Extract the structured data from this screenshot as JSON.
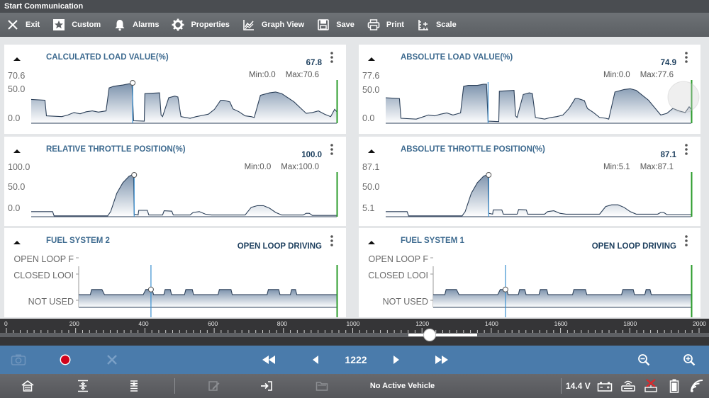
{
  "window": {
    "title": "Start Communication"
  },
  "toolbar": {
    "buttons": [
      {
        "label": "Exit",
        "icon": "close-icon"
      },
      {
        "label": "Custom",
        "icon": "star-icon"
      },
      {
        "label": "Alarms",
        "icon": "bell-icon"
      },
      {
        "label": "Properties",
        "icon": "gear-icon"
      },
      {
        "label": "Graph View",
        "icon": "graph-icon"
      },
      {
        "label": "Save",
        "icon": "save-icon"
      },
      {
        "label": "Print",
        "icon": "printer-icon"
      },
      {
        "label": "Scale",
        "icon": "scale-icon"
      }
    ]
  },
  "panels": [
    {
      "title": "CALCULATED LOAD VALUE(%)",
      "value": "67.8",
      "min_label": "Min:0.0",
      "max_label": "Max:70.6",
      "y_labels": [
        "70.6",
        "50.0",
        "0.0"
      ],
      "chart_data": {
        "type": "area",
        "y_range": [
          0,
          70.6
        ]
      }
    },
    {
      "title": "ABSOLUTE LOAD VALUE(%)",
      "value": "74.9",
      "min_label": "Min:0.0",
      "max_label": "Max:77.6",
      "y_labels": [
        "77.6",
        "50.0",
        "0.0"
      ],
      "chart_data": {
        "type": "area",
        "y_range": [
          0,
          77.6
        ]
      }
    },
    {
      "title": "RELATIVE THROTTLE POSITION(%)",
      "value": "100.0",
      "min_label": "Min:0.0",
      "max_label": "Max:100.0",
      "y_labels": [
        "100.0",
        "50.0",
        "0.0"
      ],
      "chart_data": {
        "type": "area",
        "y_range": [
          0,
          100
        ]
      }
    },
    {
      "title": "ABSOLUTE THROTTLE POSITION(%)",
      "value": "87.1",
      "min_label": "Min:5.1",
      "max_label": "Max:87.1",
      "y_labels": [
        "87.1",
        "50.0",
        "5.1"
      ],
      "chart_data": {
        "type": "area",
        "y_range": [
          5.1,
          87.1
        ]
      }
    },
    {
      "title": "FUEL SYSTEM 2",
      "value": "OPEN LOOP DRIVING",
      "y_labels": [
        "OPEN LOOP F",
        "CLOSED LOOI",
        "NOT USED"
      ],
      "chart_data": {
        "type": "area",
        "states": [
          "OPEN LOOP F",
          "CLOSED LOOI",
          "NOT USED"
        ]
      }
    },
    {
      "title": "FUEL SYSTEM 1",
      "value": "OPEN LOOP DRIVING",
      "y_labels": [
        "OPEN LOOP F",
        "CLOSED LOOI",
        "NOT USED"
      ],
      "chart_data": {
        "type": "area",
        "states": [
          "OPEN LOOP F",
          "CLOSED LOOI",
          "NOT USED"
        ]
      }
    }
  ],
  "timeline": {
    "ticks": [
      "0",
      "200",
      "400",
      "600",
      "800",
      "1000",
      "1200",
      "1400",
      "1600",
      "1800",
      "2000"
    ],
    "range": [
      0,
      2000
    ],
    "current": 1222
  },
  "playback": {
    "frame": "1222",
    "icons": [
      "camera-icon",
      "record-icon",
      "clear-icon",
      "fast-rewind-icon",
      "step-back-icon",
      "step-forward-icon",
      "fast-forward-icon",
      "zoom-out-icon",
      "zoom-in-icon"
    ],
    "record_color": "#d0021b"
  },
  "status": {
    "vehicle": "No Active Vehicle",
    "voltage": "14.4 V"
  }
}
